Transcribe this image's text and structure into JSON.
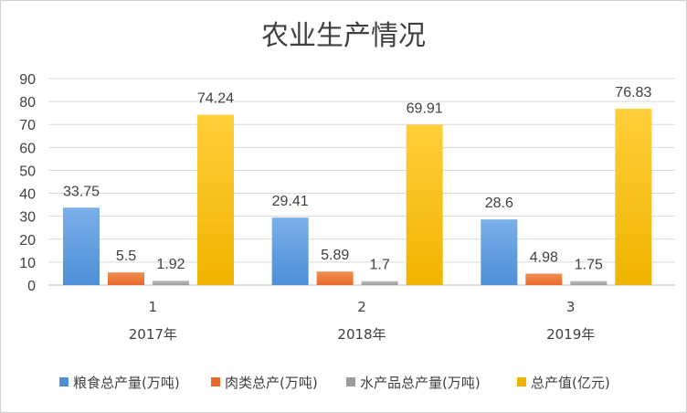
{
  "chart_data": {
    "type": "bar",
    "title": "农业生产情况",
    "categories": [
      "1",
      "2",
      "3"
    ],
    "category_years": [
      "2017年",
      "2018年",
      "2019年"
    ],
    "ylim": [
      0,
      90
    ],
    "yticks": [
      0,
      10,
      20,
      30,
      40,
      50,
      60,
      70,
      80,
      90
    ],
    "grid": true,
    "legend_position": "bottom",
    "series": [
      {
        "name": "粮食总产量(万吨)",
        "values": [
          33.75,
          29.41,
          28.6
        ],
        "labels": [
          "33.75",
          "29.41",
          "28.6"
        ],
        "color": "#4e8fd6",
        "color_light": "#7aafea"
      },
      {
        "name": "肉类总产(万吨)",
        "values": [
          5.5,
          5.89,
          4.98
        ],
        "labels": [
          "5.5",
          "5.89",
          "4.98"
        ],
        "color": "#e8692a",
        "color_light": "#f08d55"
      },
      {
        "name": "水产品总产量(万吨)",
        "values": [
          1.92,
          1.7,
          1.75
        ],
        "labels": [
          "1.92",
          "1.7",
          "1.75"
        ],
        "color": "#9c9c9c",
        "color_light": "#bdbdbd"
      },
      {
        "name": "总产值(亿元)",
        "values": [
          74.24,
          69.91,
          76.83
        ],
        "labels": [
          "74.24",
          "69.91",
          "76.83"
        ],
        "color": "#f0b400",
        "color_light": "#ffce3a"
      }
    ]
  }
}
